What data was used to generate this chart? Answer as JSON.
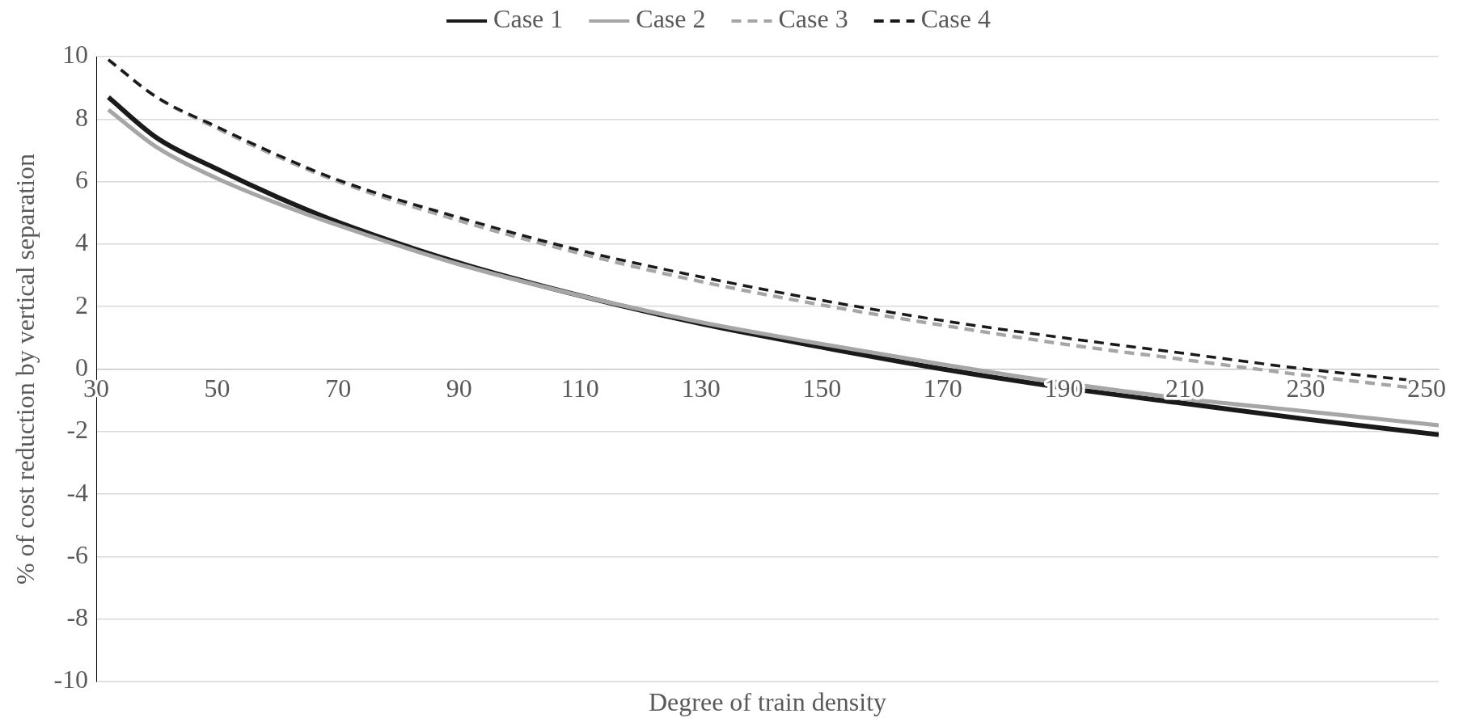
{
  "chart_data": {
    "type": "line",
    "xlabel": "Degree of train density",
    "ylabel": "% of cost reduction by vertical separation",
    "xlim": [
      30,
      252
    ],
    "xticks": [
      30,
      50,
      70,
      90,
      110,
      130,
      150,
      170,
      190,
      210,
      230,
      250
    ],
    "ylim": [
      -10,
      10
    ],
    "yticks": [
      -10,
      -8,
      -6,
      -4,
      -2,
      0,
      2,
      4,
      6,
      8,
      10
    ],
    "grid": "y",
    "legend": "top",
    "marker": "none",
    "x": [
      32,
      40,
      50,
      60,
      70,
      90,
      110,
      130,
      150,
      170,
      190,
      210,
      230,
      252
    ],
    "series": [
      {
        "name": "Case 1",
        "color": "#1a1a1a",
        "line_style": "solid",
        "values": [
          8.7,
          7.4,
          6.4,
          5.5,
          4.7,
          3.4,
          2.35,
          1.45,
          0.7,
          0.0,
          -0.6,
          -1.1,
          -1.6,
          -2.1
        ]
      },
      {
        "name": "Case 2",
        "color": "#a6a6a6",
        "line_style": "solid",
        "values": [
          8.3,
          7.1,
          6.1,
          5.3,
          4.6,
          3.35,
          2.35,
          1.5,
          0.8,
          0.15,
          -0.45,
          -0.95,
          -1.35,
          -1.8
        ]
      },
      {
        "name": "Case 3",
        "color": "#a6a6a6",
        "line_style": "dashed",
        "values": [
          9.9,
          8.7,
          7.7,
          6.8,
          6.0,
          4.75,
          3.7,
          2.8,
          2.05,
          1.4,
          0.8,
          0.3,
          -0.2,
          -0.7
        ]
      },
      {
        "name": "Case 4",
        "color": "#1a1a1a",
        "line_style": "dashed",
        "values": [
          9.9,
          8.7,
          7.75,
          6.85,
          6.05,
          4.85,
          3.8,
          2.95,
          2.2,
          1.55,
          1.0,
          0.5,
          0.0,
          -0.45
        ]
      }
    ]
  }
}
